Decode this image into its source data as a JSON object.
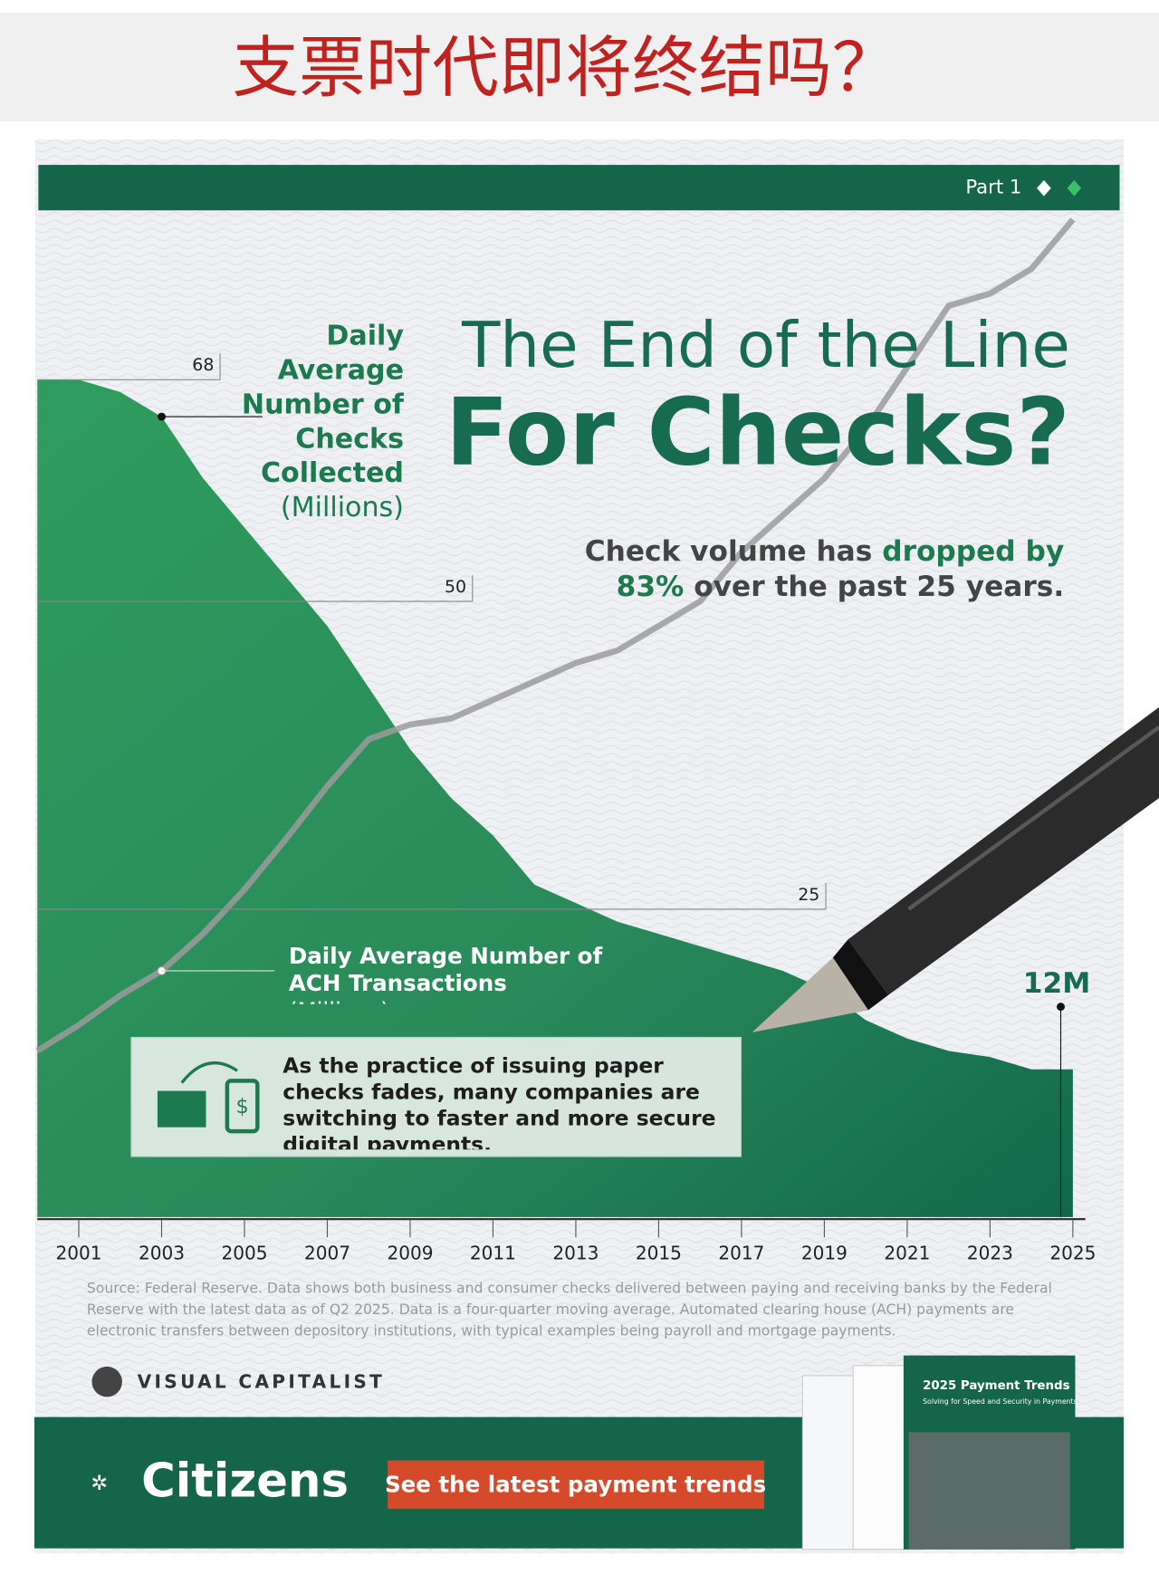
{
  "header": {
    "title": "支票时代即将终结吗？"
  },
  "chart_data": {
    "type": "area",
    "part": "Part 1",
    "title": "The End of the Line",
    "title_emphasis": "For Checks?",
    "subtitle": {
      "before": "Check volume has ",
      "highlight1": "dropped by",
      "highlight2": "83%",
      "after": " over the past 25 years."
    },
    "x": [
      2000,
      2001,
      2002,
      2003,
      2004,
      2005,
      2006,
      2007,
      2008,
      2009,
      2010,
      2011,
      2012,
      2013,
      2014,
      2015,
      2016,
      2017,
      2018,
      2019,
      2020,
      2021,
      2022,
      2023,
      2024,
      2025
    ],
    "xlim": [
      2000,
      2025.3
    ],
    "xticks": [
      2001,
      2003,
      2005,
      2007,
      2009,
      2011,
      2013,
      2015,
      2017,
      2019,
      2021,
      2023,
      2025
    ],
    "ylim": [
      0,
      82
    ],
    "yticks": [
      68,
      50,
      25
    ],
    "series": [
      {
        "name": "Daily Average Number of Checks Collected",
        "unit": "(Millions)",
        "color": "#1f8a57",
        "values": [
          68,
          68,
          67,
          65,
          60,
          56,
          52,
          48,
          43,
          38,
          34,
          31,
          27,
          25.5,
          24,
          23,
          22,
          21,
          20,
          18.5,
          16,
          14.5,
          13.5,
          13,
          12,
          12
        ],
        "value_labels": [
          null,
          null,
          null,
          null,
          null,
          null,
          null,
          null,
          null,
          null,
          null,
          null,
          null,
          null,
          null,
          null,
          null,
          null,
          null,
          null,
          null,
          null,
          null,
          null,
          null,
          "12M"
        ]
      },
      {
        "name": "Daily Average Number of ACH Transactions",
        "unit": "(Millions)",
        "color": "#9b9b9b",
        "values": [
          13.5,
          15.6,
          18,
          20,
          23,
          26.6,
          30.7,
          35,
          38.8,
          40,
          40.5,
          42,
          43.5,
          45,
          46,
          48,
          50,
          54,
          57,
          60,
          64,
          69,
          74,
          75,
          77,
          81
        ]
      }
    ],
    "callout": "As the practice of issuing paper checks fades, many companies are switching to faster and more secure digital payments.",
    "source": "Source: Federal Reserve. Data shows both business and consumer checks delivered between paying and receiving banks by the Federal Reserve with the latest data as of Q2 2025. Data is a four-quarter moving average. Automated clearing house (ACH) payments are electronic transfers between depository institutions, with typical examples being payroll and mortgage payments."
  },
  "footer": {
    "publisher": "VISUAL CAPITALIST",
    "sponsor": "Citizens",
    "button": "See the latest payment trends",
    "booklet_title": "2025 Payment Trends",
    "booklet_subtitle": "Solving for Speed and Security in Payments"
  }
}
